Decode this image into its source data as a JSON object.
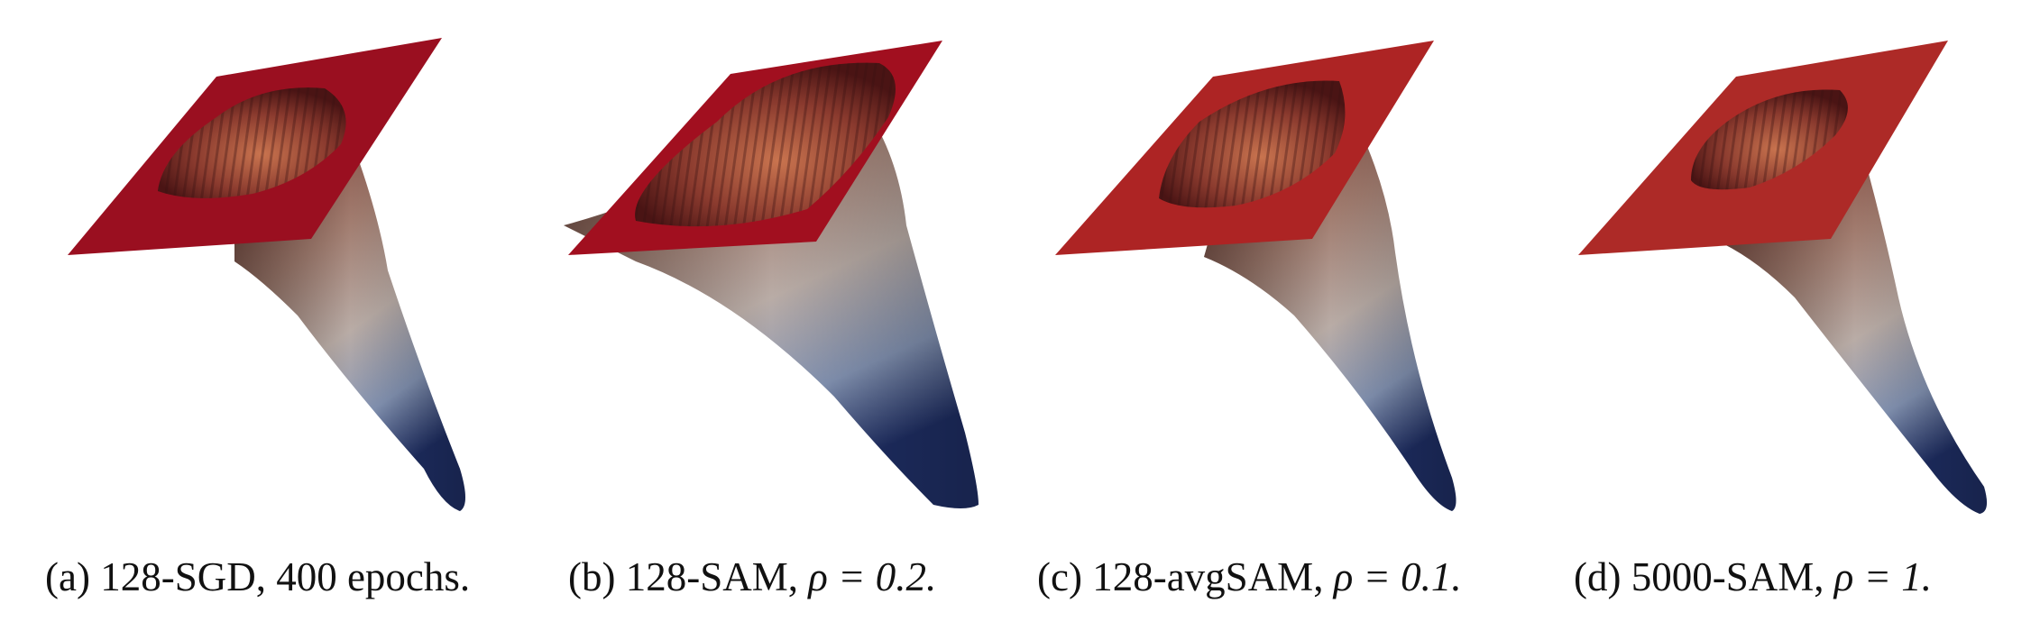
{
  "colors": {
    "plane_a": "#9a0f20",
    "plane_b": "#a10f1f",
    "plane_c": "#ad2424",
    "plane_d": "#ad2a27",
    "surface_top": "#8a4a3c",
    "surface_mid": "#b9a9a0",
    "surface_low": "#7f8fae",
    "surface_tip": "#1f2f66"
  },
  "panels": [
    {
      "label": "(a)",
      "text": "128-SGD, 400 epochs.",
      "math": ""
    },
    {
      "label": "(b)",
      "text": "128-SAM, ",
      "math": "ρ = 0.2."
    },
    {
      "label": "(c)",
      "text": "128-avgSAM, ",
      "math": "ρ = 0.1."
    },
    {
      "label": "(d)",
      "text": "5000-SAM, ",
      "math": "ρ = 1."
    }
  ]
}
